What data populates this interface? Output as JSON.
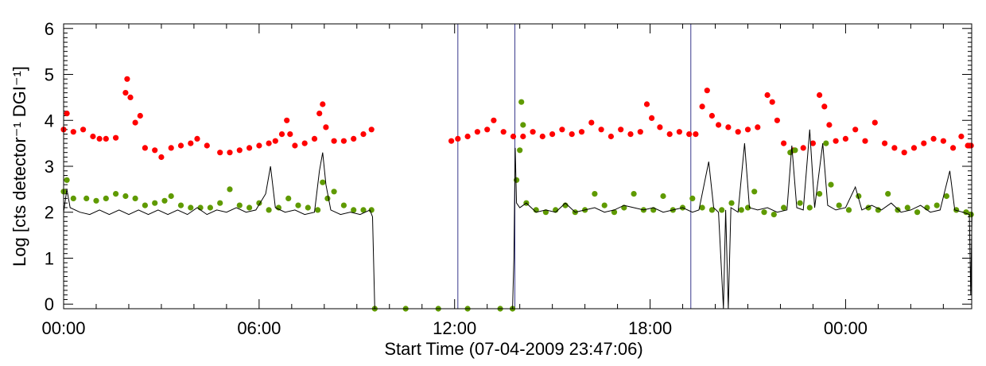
{
  "chart_data": {
    "type": "scatter",
    "xlabel": "Start Time (07-04-2009 23:47:06)",
    "ylabel": "Log [cts detector⁻¹ DGI⁻¹]",
    "xlim": [
      "00:00",
      "03:50 (+1 day)"
    ],
    "ylim": [
      -0.1,
      6.1
    ],
    "x_tick_labels": [
      "00:00",
      "06:00",
      "12:00",
      "18:00",
      "00:00"
    ],
    "y_tick_labels": [
      "0",
      "1",
      "2",
      "3",
      "4",
      "5",
      "6"
    ],
    "y_ticks": [
      0,
      1,
      2,
      3,
      4,
      5,
      6
    ],
    "data_gap": {
      "start": "08:15",
      "end": "11:50",
      "value": 0
    },
    "vertical_markers_hours": [
      12.1,
      13.85,
      19.25
    ],
    "colors": {
      "red": "#ff0000",
      "green": "#5f9a00",
      "black": "#000000",
      "marker": "#3a3a8c"
    },
    "series": [
      {
        "color": "red",
        "style": "points",
        "points": [
          [
            0.0,
            3.8
          ],
          [
            0.1,
            4.15
          ],
          [
            0.3,
            3.75
          ],
          [
            0.6,
            3.8
          ],
          [
            0.9,
            3.65
          ],
          [
            1.1,
            3.6
          ],
          [
            1.3,
            3.6
          ],
          [
            1.6,
            3.62
          ],
          [
            1.9,
            4.6
          ],
          [
            1.95,
            4.9
          ],
          [
            2.05,
            4.5
          ],
          [
            2.2,
            3.95
          ],
          [
            2.35,
            4.1
          ],
          [
            2.5,
            3.4
          ],
          [
            2.8,
            3.35
          ],
          [
            3.0,
            3.2
          ],
          [
            3.3,
            3.4
          ],
          [
            3.6,
            3.45
          ],
          [
            3.9,
            3.5
          ],
          [
            4.1,
            3.6
          ],
          [
            4.4,
            3.45
          ],
          [
            4.8,
            3.3
          ],
          [
            5.1,
            3.3
          ],
          [
            5.4,
            3.35
          ],
          [
            5.7,
            3.4
          ],
          [
            6.0,
            3.45
          ],
          [
            6.3,
            3.5
          ],
          [
            6.5,
            3.55
          ],
          [
            6.7,
            3.7
          ],
          [
            6.85,
            4.0
          ],
          [
            6.95,
            3.7
          ],
          [
            7.1,
            3.45
          ],
          [
            7.4,
            3.5
          ],
          [
            7.7,
            3.6
          ],
          [
            7.85,
            4.15
          ],
          [
            7.95,
            4.35
          ],
          [
            8.05,
            3.85
          ],
          [
            8.3,
            3.55
          ],
          [
            8.6,
            3.55
          ],
          [
            8.9,
            3.6
          ],
          [
            9.2,
            3.7
          ],
          [
            9.45,
            3.8
          ],
          [
            11.9,
            3.55
          ],
          [
            12.1,
            3.6
          ],
          [
            12.4,
            3.65
          ],
          [
            12.7,
            3.75
          ],
          [
            13.0,
            3.8
          ],
          [
            13.2,
            4.0
          ],
          [
            13.5,
            3.75
          ],
          [
            13.8,
            3.65
          ],
          [
            14.1,
            3.65
          ],
          [
            14.4,
            3.75
          ],
          [
            14.7,
            3.65
          ],
          [
            15.0,
            3.7
          ],
          [
            15.3,
            3.8
          ],
          [
            15.6,
            3.7
          ],
          [
            15.9,
            3.75
          ],
          [
            16.2,
            3.95
          ],
          [
            16.5,
            3.8
          ],
          [
            16.8,
            3.65
          ],
          [
            17.1,
            3.8
          ],
          [
            17.4,
            3.7
          ],
          [
            17.7,
            3.75
          ],
          [
            17.9,
            4.35
          ],
          [
            18.05,
            4.05
          ],
          [
            18.3,
            3.85
          ],
          [
            18.6,
            3.7
          ],
          [
            18.9,
            3.75
          ],
          [
            19.2,
            3.7
          ],
          [
            19.4,
            3.7
          ],
          [
            19.6,
            4.3
          ],
          [
            19.75,
            4.65
          ],
          [
            19.9,
            4.1
          ],
          [
            20.1,
            3.9
          ],
          [
            20.4,
            3.85
          ],
          [
            20.7,
            3.75
          ],
          [
            21.0,
            3.8
          ],
          [
            21.3,
            3.85
          ],
          [
            21.6,
            4.55
          ],
          [
            21.75,
            4.4
          ],
          [
            21.9,
            4.0
          ],
          [
            22.1,
            3.5
          ],
          [
            22.4,
            3.35
          ],
          [
            22.7,
            3.4
          ],
          [
            23.0,
            3.5
          ],
          [
            23.2,
            4.55
          ],
          [
            23.35,
            4.3
          ],
          [
            23.5,
            3.9
          ],
          [
            23.7,
            3.55
          ],
          [
            24.0,
            3.6
          ],
          [
            24.3,
            3.8
          ],
          [
            24.6,
            3.55
          ],
          [
            24.9,
            3.95
          ],
          [
            25.2,
            3.5
          ],
          [
            25.5,
            3.4
          ],
          [
            25.8,
            3.3
          ],
          [
            26.1,
            3.4
          ],
          [
            26.4,
            3.5
          ],
          [
            26.7,
            3.6
          ],
          [
            27.0,
            3.55
          ],
          [
            27.3,
            3.4
          ],
          [
            27.55,
            3.65
          ],
          [
            27.75,
            3.45
          ],
          [
            27.85,
            3.45
          ]
        ]
      },
      {
        "color": "green",
        "style": "points",
        "points": [
          [
            0.0,
            2.45
          ],
          [
            0.1,
            2.7
          ],
          [
            0.3,
            2.3
          ],
          [
            0.7,
            2.3
          ],
          [
            1.0,
            2.25
          ],
          [
            1.3,
            2.3
          ],
          [
            1.6,
            2.4
          ],
          [
            1.9,
            2.35
          ],
          [
            2.2,
            2.3
          ],
          [
            2.5,
            2.15
          ],
          [
            2.8,
            2.2
          ],
          [
            3.1,
            2.25
          ],
          [
            3.3,
            2.35
          ],
          [
            3.6,
            2.15
          ],
          [
            3.9,
            2.1
          ],
          [
            4.2,
            2.1
          ],
          [
            4.5,
            2.1
          ],
          [
            4.8,
            2.2
          ],
          [
            5.1,
            2.5
          ],
          [
            5.4,
            2.15
          ],
          [
            5.7,
            2.1
          ],
          [
            6.0,
            2.2
          ],
          [
            6.3,
            2.05
          ],
          [
            6.6,
            2.1
          ],
          [
            6.9,
            2.3
          ],
          [
            7.2,
            2.15
          ],
          [
            7.5,
            2.1
          ],
          [
            7.8,
            2.05
          ],
          [
            7.95,
            2.65
          ],
          [
            8.1,
            2.3
          ],
          [
            8.3,
            2.45
          ],
          [
            8.6,
            2.15
          ],
          [
            8.9,
            2.05
          ],
          [
            9.2,
            2.05
          ],
          [
            9.45,
            2.05
          ],
          [
            9.55,
            -0.1
          ],
          [
            10.5,
            -0.1
          ],
          [
            11.5,
            -0.1
          ],
          [
            12.4,
            -0.1
          ],
          [
            13.4,
            -0.1
          ],
          [
            13.78,
            -0.1
          ],
          [
            13.9,
            2.7
          ],
          [
            14.0,
            3.35
          ],
          [
            14.05,
            4.4
          ],
          [
            14.1,
            3.9
          ],
          [
            14.2,
            2.2
          ],
          [
            14.5,
            2.05
          ],
          [
            14.8,
            2.0
          ],
          [
            15.1,
            2.05
          ],
          [
            15.4,
            2.15
          ],
          [
            15.7,
            2.0
          ],
          [
            16.0,
            2.05
          ],
          [
            16.3,
            2.4
          ],
          [
            16.6,
            2.15
          ],
          [
            16.9,
            2.0
          ],
          [
            17.2,
            2.1
          ],
          [
            17.5,
            2.4
          ],
          [
            17.8,
            2.05
          ],
          [
            18.1,
            2.05
          ],
          [
            18.4,
            2.35
          ],
          [
            18.7,
            2.05
          ],
          [
            19.0,
            2.1
          ],
          [
            19.3,
            2.3
          ],
          [
            19.6,
            2.1
          ],
          [
            19.9,
            2.05
          ],
          [
            20.2,
            2.05
          ],
          [
            20.5,
            2.2
          ],
          [
            20.8,
            2.05
          ],
          [
            21.0,
            2.1
          ],
          [
            21.2,
            2.45
          ],
          [
            21.5,
            2.0
          ],
          [
            21.8,
            1.95
          ],
          [
            22.1,
            2.1
          ],
          [
            22.3,
            3.3
          ],
          [
            22.45,
            3.35
          ],
          [
            22.6,
            2.2
          ],
          [
            22.9,
            2.1
          ],
          [
            23.2,
            2.4
          ],
          [
            23.4,
            3.5
          ],
          [
            23.55,
            2.6
          ],
          [
            23.8,
            2.15
          ],
          [
            24.1,
            2.05
          ],
          [
            24.4,
            2.35
          ],
          [
            24.7,
            2.1
          ],
          [
            25.0,
            2.05
          ],
          [
            25.3,
            2.4
          ],
          [
            25.6,
            2.05
          ],
          [
            25.9,
            2.1
          ],
          [
            26.2,
            2.0
          ],
          [
            26.5,
            2.1
          ],
          [
            26.8,
            2.15
          ],
          [
            27.1,
            2.35
          ],
          [
            27.4,
            2.05
          ],
          [
            27.7,
            2.0
          ],
          [
            27.85,
            1.95
          ]
        ]
      },
      {
        "color": "black",
        "style": "line",
        "points": [
          [
            0.0,
            2.0
          ],
          [
            0.1,
            2.5
          ],
          [
            0.2,
            2.1
          ],
          [
            0.5,
            2.0
          ],
          [
            0.8,
            1.95
          ],
          [
            1.1,
            2.05
          ],
          [
            1.4,
            1.95
          ],
          [
            1.7,
            2.05
          ],
          [
            2.0,
            1.95
          ],
          [
            2.3,
            2.05
          ],
          [
            2.6,
            1.95
          ],
          [
            2.9,
            2.05
          ],
          [
            3.2,
            1.95
          ],
          [
            3.5,
            2.05
          ],
          [
            3.8,
            1.95
          ],
          [
            4.1,
            2.1
          ],
          [
            4.4,
            1.95
          ],
          [
            4.7,
            2.05
          ],
          [
            5.0,
            2.0
          ],
          [
            5.3,
            2.1
          ],
          [
            5.6,
            2.0
          ],
          [
            5.9,
            2.05
          ],
          [
            6.2,
            2.4
          ],
          [
            6.35,
            3.0
          ],
          [
            6.5,
            2.1
          ],
          [
            6.8,
            2.0
          ],
          [
            7.1,
            2.05
          ],
          [
            7.4,
            1.95
          ],
          [
            7.7,
            2.0
          ],
          [
            7.85,
            2.9
          ],
          [
            7.95,
            3.3
          ],
          [
            8.05,
            2.6
          ],
          [
            8.2,
            2.05
          ],
          [
            8.5,
            1.95
          ],
          [
            8.8,
            2.0
          ],
          [
            9.1,
            1.95
          ],
          [
            9.4,
            2.05
          ],
          [
            9.48,
            1.9
          ],
          [
            9.55,
            -0.1
          ],
          [
            13.78,
            -0.1
          ],
          [
            13.82,
            1.0
          ],
          [
            13.86,
            3.4
          ],
          [
            13.9,
            2.2
          ],
          [
            14.0,
            2.1
          ],
          [
            14.2,
            2.2
          ],
          [
            14.5,
            2.0
          ],
          [
            14.8,
            2.05
          ],
          [
            15.1,
            2.0
          ],
          [
            15.4,
            2.2
          ],
          [
            15.7,
            2.0
          ],
          [
            16.0,
            2.05
          ],
          [
            16.3,
            2.1
          ],
          [
            16.6,
            2.0
          ],
          [
            16.9,
            2.05
          ],
          [
            17.2,
            2.15
          ],
          [
            17.5,
            2.1
          ],
          [
            17.8,
            2.05
          ],
          [
            18.1,
            2.1
          ],
          [
            18.4,
            2.0
          ],
          [
            18.7,
            2.05
          ],
          [
            19.0,
            2.1
          ],
          [
            19.3,
            2.0
          ],
          [
            19.5,
            2.05
          ],
          [
            19.8,
            3.1
          ],
          [
            19.95,
            2.1
          ],
          [
            20.1,
            2.0
          ],
          [
            20.25,
            -0.1
          ],
          [
            20.32,
            2.05
          ],
          [
            20.4,
            -0.1
          ],
          [
            20.48,
            2.1
          ],
          [
            20.7,
            2.0
          ],
          [
            20.9,
            3.5
          ],
          [
            21.05,
            2.1
          ],
          [
            21.3,
            2.05
          ],
          [
            21.6,
            2.1
          ],
          [
            21.9,
            2.0
          ],
          [
            22.2,
            2.05
          ],
          [
            22.35,
            3.45
          ],
          [
            22.5,
            2.1
          ],
          [
            22.7,
            2.05
          ],
          [
            22.9,
            3.8
          ],
          [
            23.05,
            2.1
          ],
          [
            23.3,
            3.5
          ],
          [
            23.45,
            2.15
          ],
          [
            23.7,
            2.05
          ],
          [
            24.0,
            2.1
          ],
          [
            24.3,
            2.55
          ],
          [
            24.5,
            2.05
          ],
          [
            24.8,
            2.15
          ],
          [
            25.1,
            2.05
          ],
          [
            25.4,
            2.2
          ],
          [
            25.7,
            2.0
          ],
          [
            26.0,
            2.05
          ],
          [
            26.3,
            2.15
          ],
          [
            26.6,
            2.0
          ],
          [
            26.9,
            2.05
          ],
          [
            27.2,
            2.9
          ],
          [
            27.35,
            2.05
          ],
          [
            27.6,
            2.0
          ],
          [
            27.8,
            1.95
          ],
          [
            27.84,
            0.2
          ],
          [
            27.88,
            2.0
          ]
        ]
      }
    ]
  }
}
